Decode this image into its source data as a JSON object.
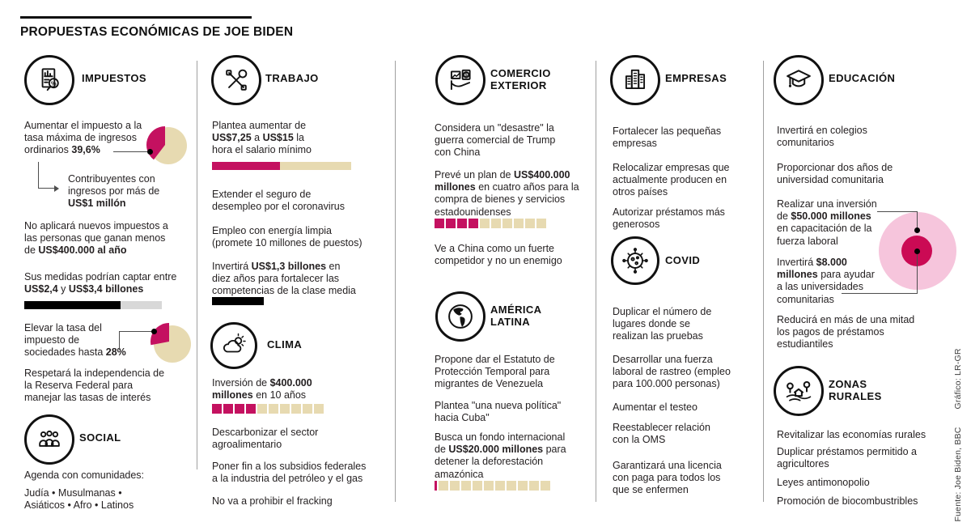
{
  "title": "PROPUESTAS ECONÓMICAS DE JOE BIDEN",
  "credits": {
    "source": "Fuente: Joe Biden, BBC",
    "graphic": "Gráfico: LR-GR"
  },
  "colors": {
    "magenta": "#c41160",
    "beige": "#e7dab1",
    "light_pink": "#f6c5dc",
    "dark_pink": "#cb0a54",
    "gray_bar": "#d8d8d8",
    "black": "#000000"
  },
  "sections": {
    "impuestos": {
      "label": "IMPUESTOS",
      "item_top_rate": "Aumentar el impuesto a la\ntasa máxima de ingresos\nordinarios **39,6%**",
      "item_top_rate_sub": "Contribuyentes con\ningresos por más de\n**US$1 millón**",
      "item_no_new_taxes": "No aplicará nuevos impuestos a\nlas personas que ganan menos\nde **US$400.000 al año**",
      "item_revenue": "Sus medidas podrían captar entre\n**US$2,4** y **US$3,4 billones**",
      "item_corporate": "Elevar la tasa del\nimpuesto de\nsociedades hasta **28%**",
      "item_fed": "Respetará la independencia de\nla Reserva Federal para\nmanejar las tasas de interés"
    },
    "social": {
      "label": "SOCIAL",
      "item_agenda": "Agenda con comunidades:",
      "item_communities": "Judía • Musulmanas •\nAsiáticos • Afro • Latinos"
    },
    "trabajo": {
      "label": "TRABAJO",
      "item_minwage": "Plantea aumentar de\n**US$7,25** a **US$15** la\nhora el salario mínimo",
      "item_unemployment": "Extender el seguro de\ndesempleo por el coronavirus",
      "item_clean_jobs": "Empleo con energía limpia\n(promete 10 millones de puestos)",
      "item_invest": "Invertirá **US$1,3 billones** en\ndiez años para fortalecer las\ncompetencias de la clase media"
    },
    "clima": {
      "label": "CLIMA",
      "item_investment": "Inversión de **$400.000\nmillones** en 10 años",
      "item_decarbonize": "Descarbonizar el sector\nagroalimentario",
      "item_subsidies": "Poner fin a los subsidios federales\na la industria del petróleo y el gas",
      "item_fracking": "No va a prohibir el fracking"
    },
    "comercio": {
      "label": "COMERCIO\nEXTERIOR",
      "item_trade_war": "Considera un \"desastre\" la\nguerra comercial de Trump\ncon China",
      "item_plan": "Prevé un plan de **US$400.000\nmillones** en cuatro años para la\ncompra de bienes y servicios\nestadounidenses",
      "item_china": "Ve a China como un fuerte\ncompetidor y no un enemigo"
    },
    "america": {
      "label": "AMÉRICA\nLATINA",
      "item_tps": "Propone dar el Estatuto de\nProtección Temporal para\nmigrantes de Venezuela",
      "item_cuba": "Plantea \"una nueva política\"\nhacia Cuba\"",
      "item_amazon": "Busca un fondo internacional\nde **US$20.000 millones** para\ndetener la deforestación\namazónica"
    },
    "empresas": {
      "label": "EMPRESAS",
      "item_small": "Fortalecer las pequeñas\nempresas",
      "item_relocate": "Relocalizar empresas que\nactualmente producen en\notros países",
      "item_loans": "Autorizar préstamos más\ngenerosos"
    },
    "covid": {
      "label": "COVID",
      "item_testing_sites": "Duplicar el número de\nlugares donde se\nrealizan las pruebas",
      "item_tracing": "Desarrollar una fuerza\nlaboral de rastreo (empleo\npara 100.000 personas)",
      "item_testing": "Aumentar el testeo",
      "item_who": "Reestablecer relación\ncon la OMS",
      "item_sick_leave": "Garantizará una licencia\ncon paga para todos los\nque se enfermen"
    },
    "educacion": {
      "label": "EDUCACIÓN",
      "item_colleges": "Invertirá en colegios\ncomunitarios",
      "item_two_years": "Proporcionar dos años de\nuniversidad comunitaria",
      "item_workforce": "Realizar una inversión\nde **$50.000 millones**\nen capacitación de la\nfuerza laboral",
      "item_universities": "Invertirá **$8.000\nmillones** para ayudar\na las universidades\ncomunitarias",
      "item_student_loans": "Reducirá en más de una mitad\nlos pagos de préstamos\nestudiantiles"
    },
    "rurales": {
      "label": "ZONAS\nRURALES",
      "item_revitalize": "Revitalizar las economías rurales",
      "item_farm_loans": "Duplicar préstamos permitido a\nagricultores",
      "item_antitrust": "Leyes antimonopolio",
      "item_biofuels": "Promoción de biocombustribles"
    }
  },
  "charts": {
    "pie_top_rate": {
      "type": "pie",
      "pct": 39.6,
      "label": "39,6%",
      "r": 23,
      "explode": [
        -4,
        -1
      ]
    },
    "pie_corporate": {
      "type": "pie",
      "pct": 28,
      "label": "28%",
      "r": 23,
      "explode": [
        -4,
        -3
      ]
    },
    "bar_revenue": {
      "type": "bar",
      "range": [
        "US$2,4 billones",
        "US$3,4 billones"
      ],
      "fill": "70%"
    },
    "bar_minwage": {
      "type": "bar",
      "from": "US$7,25",
      "to": "US$15",
      "fill": "49%"
    },
    "bar_invest": {
      "type": "bar",
      "value": "US$1,3 billones",
      "fill": "100%"
    },
    "seg_clima": {
      "type": "segmented-bar",
      "value": "$400.000 millones",
      "filled": 4,
      "total": 10
    },
    "seg_comercio": {
      "type": "segmented-bar",
      "value": "US$400.000 millones",
      "filled": 4,
      "total": 10
    },
    "seg_amazonia": {
      "type": "segmented-bar",
      "value": "US$20.000 millones",
      "filled": 0.2,
      "total": 10
    },
    "circles_educacion": {
      "type": "nested-circles",
      "outer_value": "$50.000 millones",
      "inner_value": "$8.000 millones",
      "outer_d": "96px",
      "inner_d": "38px"
    }
  }
}
